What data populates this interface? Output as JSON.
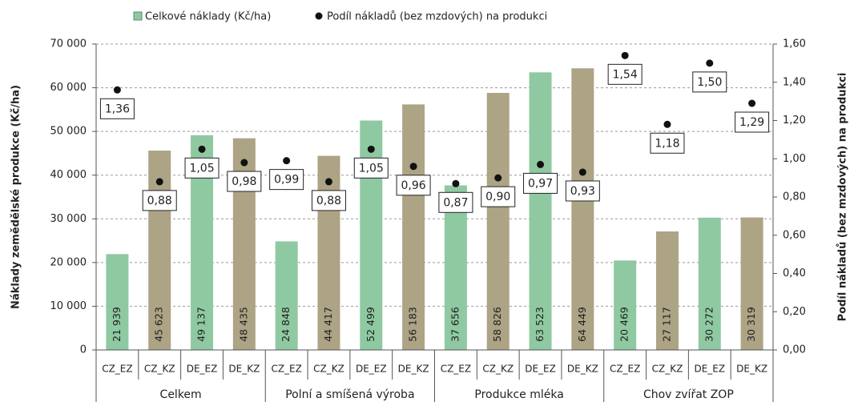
{
  "chart_data": {
    "type": "bar_dot",
    "categories": [
      "CZ_EZ",
      "CZ_KZ",
      "DE_EZ",
      "DE_KZ",
      "CZ_EZ",
      "CZ_KZ",
      "DE_EZ",
      "DE_KZ",
      "CZ_EZ",
      "CZ_KZ",
      "DE_EZ",
      "DE_KZ",
      "CZ_EZ",
      "CZ_KZ",
      "DE_EZ",
      "DE_KZ"
    ],
    "groups": [
      "Celkem",
      "Polní a smíšená výroba",
      "Produkce mléka",
      "Chov zvířat ZOP"
    ],
    "series": [
      {
        "name": "Celkové náklady (Kč/ha)",
        "color": "#8fc9a1",
        "colors": [
          "#8fc9a1",
          "#ada385",
          "#8fc9a1",
          "#ada385",
          "#8fc9a1",
          "#ada385",
          "#8fc9a1",
          "#ada385",
          "#8fc9a1",
          "#ada385",
          "#8fc9a1",
          "#ada385",
          "#8fc9a1",
          "#ada385",
          "#8fc9a1",
          "#ada385"
        ],
        "values": [
          21939,
          45623,
          49137,
          48435,
          24848,
          44417,
          52499,
          56183,
          37656,
          58826,
          63523,
          64449,
          20469,
          27117,
          30272,
          30319
        ],
        "value_labels": [
          "21 939",
          "45 623",
          "49 137",
          "48 435",
          "24 848",
          "44 417",
          "52 499",
          "56 183",
          "37 656",
          "58 826",
          "63 523",
          "64 449",
          "20 469",
          "27 117",
          "30 272",
          "30 319"
        ]
      },
      {
        "name": "Podíl nákladů (bez mzdových) na produkci",
        "axis": "y2",
        "color": "#111111",
        "values": [
          1.36,
          0.88,
          1.05,
          0.98,
          0.99,
          0.88,
          1.05,
          0.96,
          0.87,
          0.9,
          0.97,
          0.93,
          1.54,
          1.18,
          1.5,
          1.29
        ],
        "value_labels": [
          "1,36",
          "0,88",
          "1,05",
          "0,98",
          "0,99",
          "0,88",
          "1,05",
          "0,96",
          "0,87",
          "0,90",
          "0,97",
          "0,93",
          "1,54",
          "1,18",
          "1,50",
          "1,29"
        ]
      }
    ],
    "ylabel": "Náklady zemědělské produkce (Kč/ha)",
    "y2label": "Podíl nákladů (bez mzdových) na produkci",
    "ylim": [
      0,
      70000
    ],
    "yticks": [
      0,
      {
        "value": 10000,
        "label": "10 000"
      },
      {
        "value": 20000,
        "label": "20 000"
      },
      {
        "value": 30000,
        "label": "30 000"
      },
      {
        "value": 40000,
        "label": "40 000"
      },
      {
        "value": 50000,
        "label": "50 000"
      },
      {
        "value": 60000,
        "label": "60 000"
      },
      {
        "value": 70000,
        "label": "70 000"
      }
    ],
    "y2lim": [
      0,
      1.6
    ],
    "y2ticks": [
      {
        "value": 0,
        "label": "0,00"
      },
      {
        "value": 0.2,
        "label": "0,20"
      },
      {
        "value": 0.4,
        "label": "0,40"
      },
      {
        "value": 0.6,
        "label": "0,60"
      },
      {
        "value": 0.8,
        "label": "0,80"
      },
      {
        "value": 1.0,
        "label": "1,00"
      },
      {
        "value": 1.2,
        "label": "1,20"
      },
      {
        "value": 1.4,
        "label": "1,40"
      },
      {
        "value": 1.6,
        "label": "1,60"
      }
    ],
    "grid": true
  }
}
